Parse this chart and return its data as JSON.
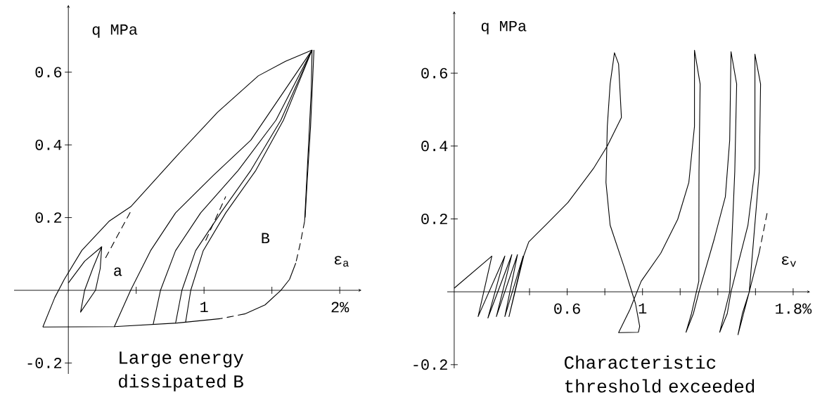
{
  "chart_data": [
    {
      "type": "line",
      "xlabel": "ε$_{a}$",
      "ylabel": "q MPa",
      "xlim": [
        -0.4,
        2.16
      ],
      "ylim": [
        -0.23,
        0.785
      ],
      "xticks": [
        {
          "value": 0.5,
          "label": null
        },
        1,
        {
          "value": 1.5,
          "label": null
        },
        {
          "value": 2,
          "label": "2%"
        }
      ],
      "yticks": [
        -0.2,
        0.2,
        0.4,
        0.6
      ],
      "annotations": [
        "a",
        "B",
        "Large energy dissipated B"
      ],
      "series": [
        {
          "color": "#000000",
          "line_style": "solid",
          "x": [
            -0.188,
            -0.1,
            -0.03,
            0.1,
            0.3,
            0.46,
            0.8,
            1.1,
            1.4,
            1.6,
            1.796
          ],
          "values": [
            -0.101,
            -0.02,
            0.03,
            0.11,
            0.19,
            0.23,
            0.37,
            0.49,
            0.59,
            0.63,
            0.661
          ]
        },
        {
          "color": "#000000",
          "line_style": "solid",
          "x": [
            1.796,
            1.79,
            1.77,
            1.741
          ],
          "values": [
            0.661,
            0.55,
            0.4,
            0.19
          ]
        },
        {
          "color": "#000000",
          "line_style": "solid",
          "x": [
            1.81,
            1.785,
            1.76,
            1.745
          ],
          "values": [
            0.661,
            0.45,
            0.3,
            0.2
          ]
        },
        {
          "color": "#000000",
          "line_style": "dashed",
          "x": [
            1.741,
            1.71,
            1.676
          ],
          "values": [
            0.19,
            0.13,
            0.075
          ]
        },
        {
          "color": "#000000",
          "line_style": "solid",
          "x": [
            1.676,
            1.63,
            1.566,
            1.45,
            1.3
          ],
          "values": [
            0.075,
            0.03,
            0,
            -0.04,
            -0.065
          ]
        },
        {
          "color": "#000000",
          "line_style": "dashed",
          "x": [
            1.3,
            1.12
          ],
          "values": [
            -0.065,
            -0.078
          ]
        },
        {
          "color": "#000000",
          "line_style": "solid",
          "x": [
            1.12,
            0.8,
            0.338,
            -0.188
          ],
          "values": [
            -0.078,
            -0.09,
            -0.1,
            -0.101
          ]
        },
        {
          "color": "#000000",
          "line_style": "solid",
          "x": [
            0.338,
            0.459,
            0.606,
            0.79,
            1.068,
            1.345,
            1.796
          ],
          "values": [
            -0.101,
            0,
            0.109,
            0.213,
            0.316,
            0.413,
            0.661
          ]
        },
        {
          "color": "#000000",
          "line_style": "solid",
          "x": [
            0.625,
            0.679,
            0.79,
            0.975,
            1.252,
            1.53,
            1.796
          ],
          "values": [
            -0.094,
            0,
            0.109,
            0.213,
            0.33,
            0.468,
            0.661
          ]
        },
        {
          "color": "#000000",
          "line_style": "solid",
          "x": [
            0.79,
            0.837,
            0.938,
            1.123,
            1.345,
            1.566,
            1.796
          ],
          "values": [
            -0.091,
            0,
            0.109,
            0.213,
            0.33,
            0.468,
            0.661
          ]
        },
        {
          "color": "#000000",
          "line_style": "solid",
          "x": [
            0.864,
            0.902,
            0.994,
            1.16,
            1.382,
            1.585,
            1.796
          ],
          "values": [
            -0.088,
            0,
            0.109,
            0.213,
            0.33,
            0.468,
            0.661
          ]
        },
        {
          "color": "#000000",
          "line_style": "solid",
          "x": [
            0,
            0.12,
            0.246,
            0.235,
            0.2,
            0.09,
            0.12,
            0.18,
            0.246
          ],
          "values": [
            0.02,
            0.08,
            0.12,
            0.06,
            0,
            -0.06,
            0,
            0.06,
            0.12
          ]
        },
        {
          "color": "#000000",
          "line_style": "dashed",
          "x": [
            0.274,
            0.468
          ],
          "values": [
            0.089,
            0.223
          ]
        },
        {
          "color": "#000000",
          "line_style": "dashed",
          "x": [
            1.012,
            1.16
          ],
          "values": [
            0.137,
            0.258
          ]
        }
      ]
    },
    {
      "type": "line",
      "xlabel": "ε$_{v}$",
      "ylabel": "q MPa",
      "xlim": [
        -0.037,
        1.89
      ],
      "ylim": [
        -0.21,
        0.77
      ],
      "xticks": [
        {
          "value": 0.4,
          "label": null
        },
        0.6,
        {
          "value": 0.8,
          "label": null
        },
        1,
        {
          "value": 1.2,
          "label": null
        },
        {
          "value": 1.4,
          "label": null
        },
        {
          "value": 1.6,
          "label": null
        },
        {
          "value": 1.8,
          "label": "1.8%"
        }
      ],
      "yticks": [
        -0.2,
        0.2,
        0.4,
        0.6
      ],
      "annotations": [
        "Characteristic threshold exceeded"
      ],
      "series": [
        {
          "color": "#000000",
          "line_style": "solid",
          "x": [
            0,
            0.2,
            0.127,
            0.269,
            0.179,
            0.306,
            0.224,
            0.336,
            0.269,
            0.366,
            0.291,
            0.37,
            0.396,
            0.485,
            0.604,
            0.739,
            0.813,
            0.888,
            0.873,
            0.851,
            0.828,
            0.813,
            0.806,
            0.828,
            0.903,
            0.963,
            0.985,
            0.978,
            0.873,
            0.933,
            0.993,
            1.097,
            1.187,
            1.246,
            1.276,
            1.276,
            1.306,
            1.3,
            1.299,
            1.26,
            1.231,
            1.27,
            1.3,
            1.381,
            1.44,
            1.463,
            1.47,
            1.5,
            1.49,
            1.463,
            1.41,
            1.45,
            1.47,
            1.56,
            1.597,
            1.597,
            1.627,
            1.62,
            1.567,
            1.507,
            1.53,
            1.567,
            1.619
          ],
          "values": [
            0.01,
            0.098,
            -0.068,
            0.098,
            -0.072,
            0.102,
            -0.068,
            0.102,
            -0.068,
            0.098,
            -0.068,
            0.1,
            0.137,
            0.183,
            0.245,
            0.338,
            0.4,
            0.478,
            0.625,
            0.656,
            0.57,
            0.454,
            0.3,
            0.183,
            0.067,
            -0.033,
            -0.095,
            -0.111,
            -0.112,
            -0.049,
            0.029,
            0.106,
            0.199,
            0.3,
            0.454,
            0.663,
            0.57,
            0.33,
            0.029,
            -0.06,
            -0.111,
            -0.06,
            0,
            0.145,
            0.261,
            0.416,
            0.659,
            0.57,
            0.33,
            0,
            -0.111,
            -0.06,
            0,
            0.183,
            0.338,
            0.652,
            0.57,
            0.33,
            0,
            -0.118,
            -0.06,
            0,
            0.106
          ]
        },
        {
          "color": "#000000",
          "line_style": "dashed",
          "x": [
            1.619,
            1.664
          ],
          "values": [
            0.106,
            0.222
          ]
        }
      ]
    }
  ]
}
